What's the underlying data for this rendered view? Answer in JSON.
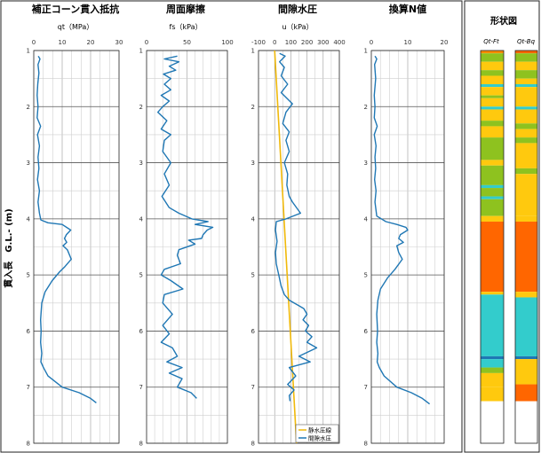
{
  "y_axis": {
    "label": "貫入長　G.L.- (m)",
    "ticks": [
      "1",
      "2",
      "3",
      "4",
      "5",
      "6",
      "7",
      "8"
    ],
    "range": [
      1,
      8
    ]
  },
  "chart_data": [
    {
      "type": "line",
      "title": "補正コーン貫入抵抗",
      "xlabel": "qt（MPa）",
      "xlim": [
        0,
        30
      ],
      "xticks": [
        "0",
        "10",
        "20",
        "30"
      ],
      "series": [
        {
          "color": "#1f77b4",
          "points": [
            [
              1.6,
              1.1
            ],
            [
              2.2,
              1.15
            ],
            [
              1.5,
              1.25
            ],
            [
              1.8,
              1.4
            ],
            [
              1.4,
              1.6
            ],
            [
              1.2,
              1.8
            ],
            [
              1.5,
              2.0
            ],
            [
              1.2,
              2.2
            ],
            [
              2.4,
              2.35
            ],
            [
              1.3,
              2.5
            ],
            [
              2.0,
              2.7
            ],
            [
              1.5,
              2.9
            ],
            [
              1.8,
              3.1
            ],
            [
              1.3,
              3.3
            ],
            [
              2.0,
              3.5
            ],
            [
              1.5,
              3.7
            ],
            [
              2.0,
              3.9
            ],
            [
              2.5,
              4.02
            ],
            [
              5.0,
              4.07
            ],
            [
              10.0,
              4.1
            ],
            [
              13.0,
              4.2
            ],
            [
              11.5,
              4.28
            ],
            [
              10.8,
              4.35
            ],
            [
              11.6,
              4.42
            ],
            [
              10.3,
              4.48
            ],
            [
              11.8,
              4.55
            ],
            [
              13.2,
              4.72
            ],
            [
              11.0,
              4.85
            ],
            [
              9.0,
              4.95
            ],
            [
              6.5,
              5.1
            ],
            [
              4.0,
              5.3
            ],
            [
              2.8,
              5.5
            ],
            [
              2.4,
              5.8
            ],
            [
              2.6,
              6.0
            ],
            [
              2.4,
              6.2
            ],
            [
              2.8,
              6.4
            ],
            [
              2.5,
              6.55
            ],
            [
              3.4,
              6.65
            ],
            [
              5.0,
              6.8
            ],
            [
              10.0,
              7.0
            ],
            [
              16.0,
              7.1
            ],
            [
              20.0,
              7.2
            ],
            [
              22.0,
              7.28
            ]
          ]
        }
      ]
    },
    {
      "type": "line",
      "title": "周面摩擦",
      "xlabel": "fs（kPa）",
      "xlim": [
        0,
        100
      ],
      "xticks": [
        "0",
        "50",
        "100"
      ],
      "series": [
        {
          "color": "#1f77b4",
          "points": [
            [
              38,
              1.1
            ],
            [
              22,
              1.15
            ],
            [
              40,
              1.2
            ],
            [
              28,
              1.28
            ],
            [
              36,
              1.35
            ],
            [
              21,
              1.42
            ],
            [
              30,
              1.5
            ],
            [
              22,
              1.6
            ],
            [
              30,
              1.7
            ],
            [
              18,
              1.8
            ],
            [
              28,
              1.9
            ],
            [
              20,
              2.0
            ],
            [
              14,
              2.1
            ],
            [
              25,
              2.25
            ],
            [
              18,
              2.4
            ],
            [
              30,
              2.5
            ],
            [
              22,
              2.6
            ],
            [
              20,
              2.8
            ],
            [
              30,
              3.0
            ],
            [
              22,
              3.2
            ],
            [
              28,
              3.4
            ],
            [
              19,
              3.6
            ],
            [
              28,
              3.8
            ],
            [
              40,
              3.9
            ],
            [
              56,
              4.0
            ],
            [
              76,
              4.05
            ],
            [
              60,
              4.1
            ],
            [
              82,
              4.15
            ],
            [
              75,
              4.2
            ],
            [
              70,
              4.28
            ],
            [
              68,
              4.35
            ],
            [
              52,
              4.38
            ],
            [
              60,
              4.45
            ],
            [
              40,
              4.55
            ],
            [
              38,
              4.65
            ],
            [
              42,
              4.8
            ],
            [
              22,
              4.9
            ],
            [
              18,
              5.0
            ],
            [
              30,
              5.1
            ],
            [
              45,
              5.25
            ],
            [
              22,
              5.35
            ],
            [
              20,
              5.5
            ],
            [
              32,
              5.7
            ],
            [
              20,
              5.9
            ],
            [
              28,
              6.05
            ],
            [
              18,
              6.2
            ],
            [
              32,
              6.3
            ],
            [
              38,
              6.45
            ],
            [
              25,
              6.55
            ],
            [
              44,
              6.65
            ],
            [
              28,
              6.75
            ],
            [
              44,
              6.85
            ],
            [
              38,
              7.0
            ],
            [
              55,
              7.1
            ],
            [
              62,
              7.2
            ]
          ]
        }
      ]
    },
    {
      "type": "line",
      "title": "間隙水圧",
      "xlabel": "u（kPa）",
      "xlim": [
        -100,
        400
      ],
      "xticks": [
        "-100",
        "0",
        "100",
        "200",
        "300",
        "400"
      ],
      "series": [
        {
          "name": "静水圧線",
          "color": "#f0b90b",
          "points": [
            [
              0,
              1.0
            ],
            [
              135,
              8.0
            ]
          ]
        },
        {
          "name": "間隙水圧",
          "color": "#1f77b4",
          "points": [
            [
              30,
              1.05
            ],
            [
              65,
              1.1
            ],
            [
              30,
              1.2
            ],
            [
              60,
              1.3
            ],
            [
              40,
              1.45
            ],
            [
              80,
              1.6
            ],
            [
              40,
              1.75
            ],
            [
              110,
              1.95
            ],
            [
              70,
              2.1
            ],
            [
              50,
              2.3
            ],
            [
              90,
              2.45
            ],
            [
              70,
              2.6
            ],
            [
              90,
              2.8
            ],
            [
              60,
              3.0
            ],
            [
              80,
              3.2
            ],
            [
              75,
              3.4
            ],
            [
              90,
              3.6
            ],
            [
              110,
              3.7
            ],
            [
              160,
              3.9
            ],
            [
              70,
              4.0
            ],
            [
              10,
              4.05
            ],
            [
              5,
              4.2
            ],
            [
              15,
              4.4
            ],
            [
              5,
              4.6
            ],
            [
              10,
              4.8
            ],
            [
              25,
              5.0
            ],
            [
              40,
              5.2
            ],
            [
              60,
              5.35
            ],
            [
              90,
              5.45
            ],
            [
              150,
              5.55
            ],
            [
              180,
              5.6
            ],
            [
              200,
              5.7
            ],
            [
              175,
              5.8
            ],
            [
              210,
              5.9
            ],
            [
              190,
              6.0
            ],
            [
              230,
              6.1
            ],
            [
              200,
              6.2
            ],
            [
              260,
              6.3
            ],
            [
              150,
              6.45
            ],
            [
              220,
              6.55
            ],
            [
              90,
              6.65
            ],
            [
              130,
              6.8
            ],
            [
              80,
              6.95
            ],
            [
              120,
              7.05
            ],
            [
              90,
              7.15
            ],
            [
              95,
              7.25
            ]
          ]
        }
      ]
    },
    {
      "type": "line",
      "title": "換算N値",
      "xlabel": "",
      "xlim": [
        0,
        20
      ],
      "xticks": [
        "0",
        "10",
        "20"
      ],
      "series": [
        {
          "color": "#1f77b4",
          "points": [
            [
              1.0,
              1.1
            ],
            [
              1.5,
              1.15
            ],
            [
              0.9,
              1.25
            ],
            [
              1.2,
              1.5
            ],
            [
              0.8,
              1.8
            ],
            [
              1.0,
              2.0
            ],
            [
              0.8,
              2.2
            ],
            [
              1.6,
              2.35
            ],
            [
              0.8,
              2.5
            ],
            [
              1.3,
              2.7
            ],
            [
              1.0,
              2.9
            ],
            [
              1.2,
              3.1
            ],
            [
              0.9,
              3.3
            ],
            [
              1.3,
              3.5
            ],
            [
              1.0,
              3.7
            ],
            [
              1.5,
              3.95
            ],
            [
              4.0,
              4.05
            ],
            [
              7.0,
              4.1
            ],
            [
              9.5,
              4.15
            ],
            [
              10.0,
              4.2
            ],
            [
              8.0,
              4.28
            ],
            [
              7.5,
              4.35
            ],
            [
              8.8,
              4.42
            ],
            [
              7.0,
              4.48
            ],
            [
              7.5,
              4.6
            ],
            [
              8.5,
              4.72
            ],
            [
              6.5,
              4.9
            ],
            [
              4.5,
              5.05
            ],
            [
              2.5,
              5.25
            ],
            [
              1.8,
              5.45
            ],
            [
              1.5,
              5.7
            ],
            [
              1.7,
              6.0
            ],
            [
              1.5,
              6.2
            ],
            [
              1.8,
              6.4
            ],
            [
              1.6,
              6.55
            ],
            [
              2.2,
              6.65
            ],
            [
              3.5,
              6.8
            ],
            [
              7.0,
              7.0
            ],
            [
              11.0,
              7.1
            ],
            [
              14.0,
              7.2
            ],
            [
              16.0,
              7.3
            ]
          ]
        }
      ]
    }
  ],
  "shape": {
    "title": "形状図",
    "columns": [
      {
        "label": "Qt-Ft",
        "bands": [
          [
            1.0,
            1.05,
            "#ff8c00"
          ],
          [
            1.05,
            1.2,
            "#8ec21f"
          ],
          [
            1.2,
            1.35,
            "#ffc90e"
          ],
          [
            1.35,
            1.45,
            "#8ec21f"
          ],
          [
            1.45,
            1.6,
            "#ffc90e"
          ],
          [
            1.6,
            1.65,
            "#33cccc"
          ],
          [
            1.65,
            1.8,
            "#ffc90e"
          ],
          [
            1.8,
            1.85,
            "#8ec21f"
          ],
          [
            1.85,
            2.0,
            "#ffc90e"
          ],
          [
            2.0,
            2.05,
            "#33cccc"
          ],
          [
            2.05,
            2.25,
            "#ffc90e"
          ],
          [
            2.25,
            2.35,
            "#8ec21f"
          ],
          [
            2.35,
            2.55,
            "#ffc90e"
          ],
          [
            2.55,
            2.95,
            "#8ec21f"
          ],
          [
            2.95,
            3.05,
            "#ffc90e"
          ],
          [
            3.05,
            3.4,
            "#8ec21f"
          ],
          [
            3.4,
            3.45,
            "#33cccc"
          ],
          [
            3.45,
            3.6,
            "#8ec21f"
          ],
          [
            3.6,
            3.65,
            "#33cccc"
          ],
          [
            3.65,
            3.95,
            "#8ec21f"
          ],
          [
            3.95,
            4.05,
            "#ffc90e"
          ],
          [
            4.05,
            5.3,
            "#ff6600"
          ],
          [
            5.3,
            5.35,
            "#ffc90e"
          ],
          [
            5.35,
            6.45,
            "#33cccc"
          ],
          [
            6.45,
            6.5,
            "#1f77b4"
          ],
          [
            6.5,
            6.65,
            "#33cccc"
          ],
          [
            6.65,
            6.75,
            "#8ec21f"
          ],
          [
            6.75,
            7.0,
            "#ffc90e"
          ],
          [
            7.0,
            7.25,
            "#ffc90e"
          ]
        ]
      },
      {
        "label": "Qt-Bq",
        "bands": [
          [
            1.0,
            1.05,
            "#ff6600"
          ],
          [
            1.05,
            1.2,
            "#8ec21f"
          ],
          [
            1.2,
            1.35,
            "#ffc90e"
          ],
          [
            1.35,
            1.5,
            "#8ec21f"
          ],
          [
            1.5,
            1.6,
            "#ffc90e"
          ],
          [
            1.6,
            1.65,
            "#33cccc"
          ],
          [
            1.65,
            2.0,
            "#ffc90e"
          ],
          [
            2.0,
            2.05,
            "#33cccc"
          ],
          [
            2.05,
            2.3,
            "#ffc90e"
          ],
          [
            2.3,
            2.4,
            "#8ec21f"
          ],
          [
            2.4,
            2.55,
            "#ffc90e"
          ],
          [
            2.55,
            2.65,
            "#8ec21f"
          ],
          [
            2.65,
            3.1,
            "#ffc90e"
          ],
          [
            3.1,
            3.2,
            "#8ec21f"
          ],
          [
            3.2,
            3.95,
            "#ffc90e"
          ],
          [
            3.95,
            4.05,
            "#ffc90e"
          ],
          [
            4.05,
            5.3,
            "#ff6600"
          ],
          [
            5.3,
            5.4,
            "#ffc90e"
          ],
          [
            5.4,
            6.45,
            "#33cccc"
          ],
          [
            6.45,
            6.5,
            "#1f77b4"
          ],
          [
            6.5,
            6.95,
            "#ffc90e"
          ],
          [
            6.95,
            7.25,
            "#ff6600"
          ]
        ]
      }
    ]
  }
}
